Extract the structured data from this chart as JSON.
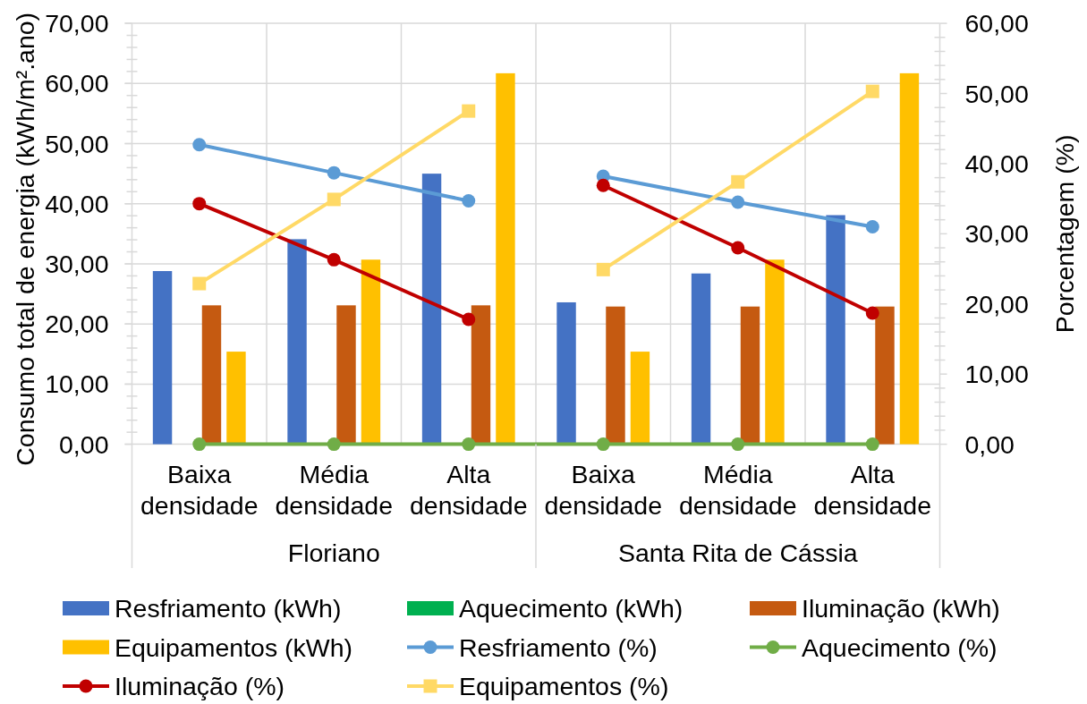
{
  "chart_data": {
    "type": "bar",
    "categories": [
      "Baixa densidade",
      "Média densidade",
      "Alta densidade",
      "Baixa densidade",
      "Média densidade",
      "Alta densidade"
    ],
    "annotations": [
      "Floriano",
      "Santa Rita de Cássia"
    ],
    "ylabel": "Consumo total de energia (kWh/m².ano)",
    "y2label": "Porcentagem (%)",
    "ylim": [
      0,
      70
    ],
    "yticks": [
      {
        "value": 0,
        "label": "0,00"
      },
      {
        "value": 2,
        "label": null
      },
      {
        "value": 4,
        "label": null
      },
      {
        "value": 6,
        "label": null
      },
      {
        "value": 8,
        "label": null
      },
      {
        "value": 10,
        "label": "10,00"
      },
      {
        "value": 12,
        "label": null
      },
      {
        "value": 14,
        "label": null
      },
      {
        "value": 16,
        "label": null
      },
      {
        "value": 18,
        "label": null
      },
      {
        "value": 20,
        "label": "20,00"
      },
      {
        "value": 22,
        "label": null
      },
      {
        "value": 24,
        "label": null
      },
      {
        "value": 26,
        "label": null
      },
      {
        "value": 28,
        "label": null
      },
      {
        "value": 30,
        "label": "30,00"
      },
      {
        "value": 32,
        "label": null
      },
      {
        "value": 34,
        "label": null
      },
      {
        "value": 36,
        "label": null
      },
      {
        "value": 38,
        "label": null
      },
      {
        "value": 40,
        "label": "40,00"
      },
      {
        "value": 42,
        "label": null
      },
      {
        "value": 44,
        "label": null
      },
      {
        "value": 46,
        "label": null
      },
      {
        "value": 48,
        "label": null
      },
      {
        "value": 50,
        "label": "50,00"
      },
      {
        "value": 52,
        "label": null
      },
      {
        "value": 54,
        "label": null
      },
      {
        "value": 56,
        "label": null
      },
      {
        "value": 58,
        "label": null
      },
      {
        "value": 60,
        "label": "60,00"
      },
      {
        "value": 62,
        "label": null
      },
      {
        "value": 64,
        "label": null
      },
      {
        "value": 66,
        "label": null
      },
      {
        "value": 68,
        "label": null
      },
      {
        "value": 70,
        "label": "70,00"
      }
    ],
    "y2lim": [
      0,
      60
    ],
    "y2ticks": [
      {
        "value": 0,
        "label": "0,00"
      },
      {
        "value": 2,
        "label": null
      },
      {
        "value": 4,
        "label": null
      },
      {
        "value": 6,
        "label": null
      },
      {
        "value": 8,
        "label": null
      },
      {
        "value": 10,
        "label": "10,00"
      },
      {
        "value": 12,
        "label": null
      },
      {
        "value": 14,
        "label": null
      },
      {
        "value": 16,
        "label": null
      },
      {
        "value": 18,
        "label": null
      },
      {
        "value": 20,
        "label": "20,00"
      },
      {
        "value": 22,
        "label": null
      },
      {
        "value": 24,
        "label": null
      },
      {
        "value": 26,
        "label": null
      },
      {
        "value": 28,
        "label": null
      },
      {
        "value": 30,
        "label": "30,00"
      },
      {
        "value": 32,
        "label": null
      },
      {
        "value": 34,
        "label": null
      },
      {
        "value": 36,
        "label": null
      },
      {
        "value": 38,
        "label": null
      },
      {
        "value": 40,
        "label": "40,00"
      },
      {
        "value": 42,
        "label": null
      },
      {
        "value": 44,
        "label": null
      },
      {
        "value": 46,
        "label": null
      },
      {
        "value": 48,
        "label": null
      },
      {
        "value": 50,
        "label": "50,00"
      },
      {
        "value": 52,
        "label": null
      },
      {
        "value": 54,
        "label": null
      },
      {
        "value": 56,
        "label": null
      },
      {
        "value": 58,
        "label": null
      },
      {
        "value": 60,
        "label": "60,00"
      }
    ],
    "grid": true,
    "legend": "bottom",
    "series": [
      {
        "name": "Resfriamento (kWh)",
        "color": "#4472c4",
        "values": [
          28.8,
          34.1,
          45.0,
          23.6,
          28.4,
          38.1
        ]
      },
      {
        "name": "Aquecimento (kWh)",
        "color": "#00b050",
        "values": [
          0,
          0,
          0,
          0,
          0,
          0
        ]
      },
      {
        "name": "Iluminação (kWh)",
        "color": "#c55a11",
        "values": [
          23.1,
          23.1,
          23.1,
          22.9,
          22.9,
          22.9
        ]
      },
      {
        "name": "Equipamentos (kWh)",
        "color": "#ffc000",
        "values": [
          15.4,
          30.7,
          61.7,
          15.4,
          30.7,
          61.7
        ]
      },
      {
        "name": "Resfriamento (%)",
        "type": "line",
        "axis": "y2",
        "color": "#5b9bd5",
        "marker": "circle",
        "values": [
          42.7,
          38.7,
          34.7,
          null,
          null,
          null
        ]
      },
      {
        "name": "Aquecimento (%)",
        "type": "line",
        "axis": "y2",
        "color": "#70ad47",
        "marker": "circle",
        "values": [
          0,
          0,
          0,
          0,
          0,
          0
        ]
      },
      {
        "name": "Iluminação (%)",
        "type": "line",
        "axis": "y2",
        "color": "#c00000",
        "marker": "circle",
        "values": [
          34.3,
          26.3,
          17.8,
          null,
          null,
          null
        ]
      },
      {
        "name": "Equipamentos (%)",
        "type": "line",
        "axis": "y2",
        "color": "#ffd966",
        "marker": "square",
        "values": [
          22.9,
          34.9,
          47.5,
          null,
          null,
          null
        ]
      },
      {
        "type": "line",
        "axis": "y2",
        "color": "#5b9bd5",
        "marker": "circle",
        "values": [
          null,
          null,
          null,
          38.2,
          34.5,
          31.0
        ]
      },
      {
        "type": "line",
        "axis": "y2",
        "color": "#c00000",
        "marker": "circle",
        "values": [
          null,
          null,
          null,
          36.9,
          28.0,
          18.7
        ]
      },
      {
        "type": "line",
        "axis": "y2",
        "color": "#ffd966",
        "marker": "square",
        "values": [
          null,
          null,
          null,
          24.9,
          37.4,
          50.3
        ]
      }
    ]
  }
}
